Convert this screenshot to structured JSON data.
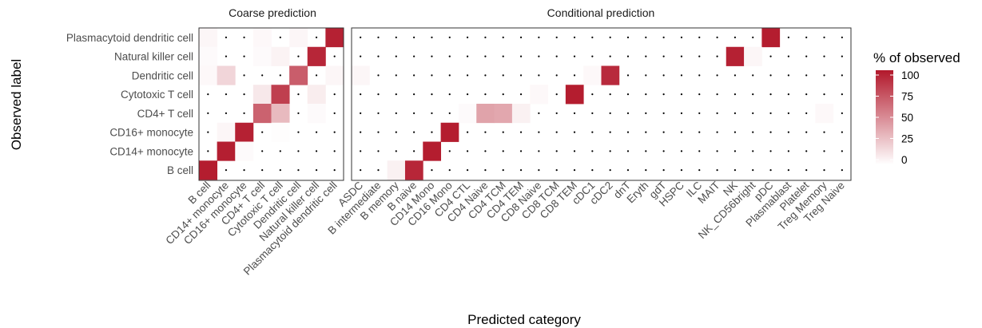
{
  "chart_data": {
    "type": "heatmap",
    "xlabel": "Predicted category",
    "ylabel": "Observed label",
    "legend": {
      "title": "% of observed",
      "ticks": [
        0,
        25,
        50,
        75,
        100
      ],
      "color_low": "#ffffff",
      "color_high": "#b2182b"
    },
    "rows": [
      "Plasmacytoid dendritic cell",
      "Natural killer cell",
      "Dendritic cell",
      "Cytotoxic T cell",
      "CD4+ T cell",
      "CD16+ monocyte",
      "CD14+ monocyte",
      "B cell"
    ],
    "panels": [
      {
        "strip": "Coarse prediction",
        "columns": [
          "B cell",
          "CD14+ monocyte",
          "CD16+ monocyte",
          "CD4+ T cell",
          "Cytotoxic T cell",
          "Dendritic cell",
          "Natural killer cell",
          "Plasmacytoid dendritic cell"
        ],
        "values": [
          [
            4,
            0,
            0,
            3,
            0,
            4,
            0,
            96
          ],
          [
            2,
            0,
            0,
            2,
            5,
            0,
            94,
            0
          ],
          [
            3,
            18,
            0,
            0,
            0,
            70,
            0,
            4
          ],
          [
            0,
            0,
            0,
            10,
            83,
            0,
            8,
            0
          ],
          [
            0,
            0,
            0,
            68,
            30,
            0,
            2,
            0
          ],
          [
            0,
            4,
            96,
            0,
            1,
            0,
            0,
            0
          ],
          [
            0,
            97,
            2,
            0,
            0,
            0,
            0,
            0
          ],
          [
            98,
            0,
            0,
            0,
            0,
            0,
            0,
            0
          ]
        ]
      },
      {
        "strip": "Conditional prediction",
        "columns": [
          "ASDC",
          "B intermediate",
          "B memory",
          "B naive",
          "CD14 Mono",
          "CD16 Mono",
          "CD4 CTL",
          "CD4 Naive",
          "CD4 TCM",
          "CD4 TEM",
          "CD8 Naive",
          "CD8 TCM",
          "CD8 TEM",
          "cDC1",
          "cDC2",
          "dnT",
          "Eryth",
          "gdT",
          "HSPC",
          "ILC",
          "MAIT",
          "NK",
          "NK_CD56bright",
          "pDC",
          "Plasmablast",
          "Platelet",
          "Treg Memory",
          "Treg Naive"
        ],
        "values": [
          [
            0,
            0,
            0,
            0,
            0,
            0,
            0,
            0,
            0,
            0,
            0,
            0,
            0,
            0,
            0,
            0,
            0,
            0,
            0,
            0,
            0,
            0,
            0,
            98,
            0,
            0,
            0,
            0
          ],
          [
            0,
            0,
            0,
            0,
            0,
            0,
            0,
            0,
            0,
            0,
            0,
            0,
            0,
            0,
            0,
            0,
            0,
            0,
            0,
            0,
            0,
            96,
            4,
            0,
            0,
            0,
            0,
            0
          ],
          [
            4,
            0,
            0,
            0,
            0,
            0,
            0,
            0,
            0,
            0,
            0,
            0,
            0,
            3,
            92,
            0,
            0,
            0,
            0,
            0,
            0,
            0,
            0,
            0,
            0,
            0,
            0,
            0
          ],
          [
            0,
            0,
            0,
            0,
            0,
            0,
            0,
            0,
            0,
            0,
            3,
            0,
            98,
            0,
            0,
            0,
            0,
            0,
            0,
            0,
            0,
            0,
            0,
            0,
            0,
            0,
            0,
            0
          ],
          [
            0,
            0,
            0,
            0,
            0,
            0,
            2,
            40,
            38,
            6,
            0,
            0,
            0,
            0,
            0,
            0,
            0,
            0,
            0,
            0,
            0,
            0,
            0,
            0,
            0,
            0,
            3,
            0
          ],
          [
            0,
            0,
            0,
            0,
            0,
            98,
            0,
            0,
            0,
            0,
            0,
            0,
            0,
            0,
            0,
            0,
            0,
            0,
            0,
            0,
            0,
            0,
            0,
            0,
            0,
            0,
            0,
            0
          ],
          [
            0,
            0,
            0,
            0,
            98,
            0,
            0,
            0,
            0,
            0,
            0,
            0,
            0,
            0,
            0,
            0,
            0,
            0,
            0,
            0,
            0,
            0,
            0,
            0,
            0,
            0,
            0,
            0
          ],
          [
            0,
            0,
            6,
            94,
            0,
            0,
            0,
            0,
            0,
            0,
            0,
            0,
            0,
            0,
            0,
            0,
            0,
            0,
            0,
            0,
            0,
            0,
            0,
            0,
            0,
            0,
            0,
            0
          ]
        ]
      }
    ]
  }
}
